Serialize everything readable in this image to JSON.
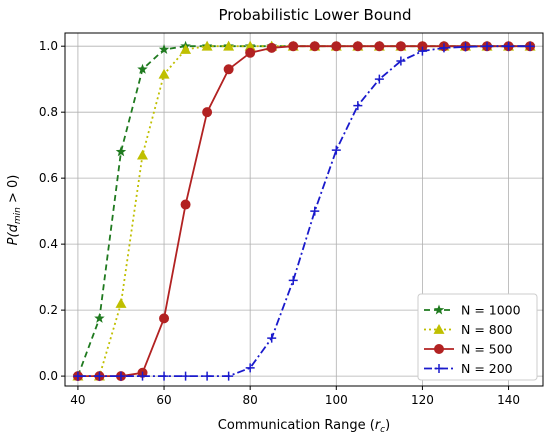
{
  "chart_data": {
    "type": "line",
    "title": "Probabilistic Lower Bound",
    "xlabel_main": "Communication Range (",
    "xlabel_sym": "r",
    "xlabel_sub": "c",
    "xlabel_close": ")",
    "ylabel_p": "P(",
    "ylabel_d": "d",
    "ylabel_sub": "min",
    "ylabel_rest": " > 0)",
    "xlim": [
      37,
      148
    ],
    "ylim": [
      -0.03,
      1.04
    ],
    "xticks": [
      40,
      60,
      80,
      100,
      120,
      140
    ],
    "yticks": [
      0.0,
      0.2,
      0.4,
      0.6,
      0.8,
      1.0
    ],
    "xtick_labels": [
      "40",
      "60",
      "80",
      "100",
      "120",
      "140"
    ],
    "ytick_labels": [
      "0.0",
      "0.2",
      "0.4",
      "0.6",
      "0.8",
      "1.0"
    ],
    "grid": true,
    "legend_position": "bottom-right",
    "x": [
      40,
      45,
      50,
      55,
      60,
      65,
      70,
      75,
      80,
      85,
      90,
      95,
      100,
      105,
      110,
      115,
      120,
      125,
      130,
      135,
      140,
      145
    ],
    "series": [
      {
        "name": "N = 1000",
        "color": "#1f7a1f",
        "dash": "6,4",
        "marker": "star",
        "values": [
          0.0,
          0.175,
          0.68,
          0.93,
          0.99,
          1.0,
          1.0,
          1.0,
          1.0,
          1.0,
          1.0,
          1.0,
          1.0,
          1.0,
          1.0,
          1.0,
          1.0,
          1.0,
          1.0,
          1.0,
          1.0,
          1.0
        ]
      },
      {
        "name": "N = 800",
        "color": "#bfbf00",
        "dash": "2,3",
        "marker": "triangle",
        "values": [
          0.0,
          0.0,
          0.22,
          0.67,
          0.915,
          0.99,
          1.0,
          1.0,
          1.0,
          1.0,
          1.0,
          1.0,
          1.0,
          1.0,
          1.0,
          1.0,
          1.0,
          1.0,
          1.0,
          1.0,
          1.0,
          1.0
        ]
      },
      {
        "name": "N = 500",
        "color": "#b22222",
        "dash": "",
        "marker": "circle",
        "values": [
          0.0,
          0.0,
          0.0,
          0.01,
          0.175,
          0.52,
          0.8,
          0.93,
          0.98,
          0.995,
          1.0,
          1.0,
          1.0,
          1.0,
          1.0,
          1.0,
          1.0,
          1.0,
          1.0,
          1.0,
          1.0,
          1.0
        ]
      },
      {
        "name": "N = 200",
        "color": "#1a1acc",
        "dash": "8,3,2,3",
        "marker": "plus",
        "values": [
          0.0,
          0.0,
          0.0,
          0.0,
          0.0,
          0.0,
          0.0,
          0.0,
          0.025,
          0.115,
          0.29,
          0.5,
          0.685,
          0.82,
          0.9,
          0.955,
          0.985,
          0.995,
          0.998,
          1.0,
          1.0,
          1.0
        ]
      }
    ]
  }
}
